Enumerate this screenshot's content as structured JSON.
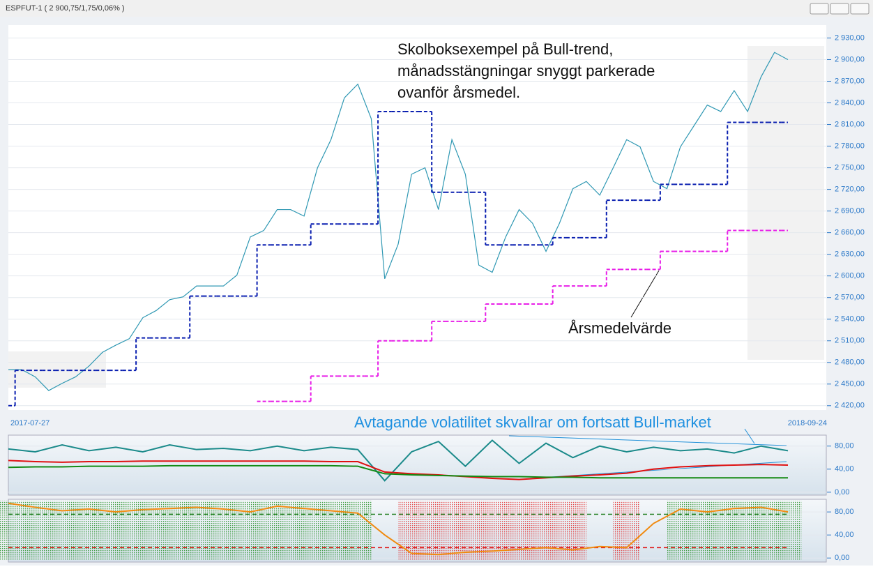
{
  "window_title": "ESPFUT-1 ( 2 900,75/1,75/0,06% )",
  "chart_data": [
    {
      "type": "line",
      "categories": [
        "2017-07-27",
        null,
        null,
        null,
        null,
        null,
        null,
        null,
        null,
        null,
        null,
        null,
        null,
        null,
        null,
        null,
        null,
        null,
        null,
        null,
        null,
        null,
        null,
        null,
        null,
        null,
        null,
        null,
        null,
        null,
        null,
        null,
        null,
        null,
        null,
        null,
        null,
        null,
        null,
        null,
        null,
        null,
        null,
        null,
        null,
        null,
        null,
        null,
        null,
        null,
        null,
        null,
        null,
        null,
        null,
        null,
        null,
        null,
        "2018-09-24"
      ],
      "series": [
        {
          "style": "line",
          "color": "#2f98b3",
          "values": [
            2470,
            2470,
            2460,
            2441,
            2451,
            2460,
            2475,
            2494,
            2504,
            2513,
            2542,
            2552,
            2567,
            2571,
            2586,
            2586,
            2586,
            2601,
            2654,
            2663,
            2692,
            2692,
            2683,
            2750,
            2789,
            2847,
            2866,
            2818,
            2596,
            2644,
            2741,
            2750,
            2692,
            2789,
            2741,
            2615,
            2605,
            2654,
            2692,
            2673,
            2634,
            2673,
            2721,
            2731,
            2712,
            2750,
            2789,
            2779,
            2731,
            2721,
            2779,
            2808,
            2837,
            2828,
            2857,
            2828,
            2876,
            2910,
            2900
          ]
        },
        {
          "style": "step",
          "color": "#0a1fb0",
          "values": [
            2420,
            2469,
            2469,
            2469,
            2469,
            2469,
            2469,
            2469,
            2469,
            2469,
            2514,
            2514,
            2514,
            2514,
            2572,
            2572,
            2572,
            2572,
            2572,
            2643,
            2643,
            2643,
            2643,
            2672,
            2672,
            2672,
            2672,
            2672,
            2828,
            2828,
            2828,
            2828,
            2716,
            2716,
            2716,
            2716,
            2643,
            2643,
            2643,
            2643,
            2643,
            2653,
            2653,
            2653,
            2653,
            2705,
            2705,
            2705,
            2705,
            2727,
            2727,
            2727,
            2727,
            2727,
            2813,
            2813,
            2813,
            2813,
            2813
          ]
        },
        {
          "style": "step",
          "color": "#e81ee8",
          "values": [
            null,
            null,
            null,
            null,
            null,
            null,
            null,
            null,
            null,
            null,
            null,
            null,
            null,
            null,
            null,
            null,
            null,
            null,
            null,
            2426,
            2426,
            2426,
            2426,
            2461,
            2461,
            2461,
            2461,
            2461,
            2510,
            2510,
            2510,
            2510,
            2537,
            2537,
            2537,
            2537,
            2561,
            2561,
            2561,
            2561,
            2561,
            2586,
            2586,
            2586,
            2586,
            2609,
            2609,
            2609,
            2609,
            2634,
            2634,
            2634,
            2634,
            2634,
            2663,
            2663,
            2663,
            2663,
            2663
          ]
        }
      ],
      "ylim": [
        2414,
        2944
      ],
      "yticks": [
        {
          "value": 2420,
          "label": "2 420,00"
        },
        {
          "value": 2450,
          "label": "2 450,00"
        },
        {
          "value": 2480,
          "label": "2 480,00"
        },
        {
          "value": 2510,
          "label": "2 510,00"
        },
        {
          "value": 2540,
          "label": "2 540,00"
        },
        {
          "value": 2570,
          "label": "2 570,00"
        },
        {
          "value": 2600,
          "label": "2 600,00"
        },
        {
          "value": 2630,
          "label": "2 630,00"
        },
        {
          "value": 2660,
          "label": "2 660,00"
        },
        {
          "value": 2690,
          "label": "2 690,00"
        },
        {
          "value": 2720,
          "label": "2 720,00"
        },
        {
          "value": 2750,
          "label": "2 750,00"
        },
        {
          "value": 2780,
          "label": "2 780,00"
        },
        {
          "value": 2810,
          "label": "2 810,00"
        },
        {
          "value": 2840,
          "label": "2 840,00"
        },
        {
          "value": 2870,
          "label": "2 870,00"
        },
        {
          "value": 2900,
          "label": "2 900,00"
        },
        {
          "value": 2930,
          "label": "2 930,00"
        }
      ],
      "grid": true,
      "annotations": [
        "Skolboksexempel på Bull-trend,",
        "månadsstängningar snyggt parkerade",
        "ovanför årsmedel.",
        "Årsmedelvärde"
      ]
    },
    {
      "type": "line",
      "series": [
        {
          "style": "line",
          "color": "#1a8a8a",
          "values": [
            75,
            70,
            82,
            72,
            78,
            70,
            82,
            74,
            76,
            72,
            80,
            72,
            78,
            74,
            20,
            70,
            88,
            45,
            90,
            50,
            85,
            60,
            80,
            70,
            78,
            72,
            75,
            68,
            80,
            72
          ]
        },
        {
          "style": "line",
          "color": "#e01010",
          "values": [
            55,
            53,
            52,
            53,
            53,
            54,
            54,
            54,
            54,
            54,
            54,
            54,
            53,
            53,
            35,
            32,
            30,
            27,
            24,
            22,
            25,
            28,
            30,
            33,
            40,
            44,
            46,
            47,
            48,
            47
          ]
        },
        {
          "style": "line",
          "color": "#138a13",
          "values": [
            43,
            44,
            44,
            45,
            45,
            45,
            46,
            46,
            46,
            46,
            46,
            46,
            46,
            45,
            32,
            30,
            29,
            28,
            27,
            27,
            26,
            26,
            25,
            25,
            25,
            25,
            25,
            25,
            25,
            25
          ]
        }
      ],
      "ylim": [
        -5,
        99
      ],
      "yticks": [
        {
          "value": 0,
          "label": "0,00"
        },
        {
          "value": 40,
          "label": "40,00"
        },
        {
          "value": 80,
          "label": "80,00"
        }
      ],
      "grid": true,
      "annotations": [
        "Avtagande volatilitet skvallrar om fortsatt Bull-market"
      ]
    },
    {
      "type": "line",
      "series": [
        {
          "style": "line",
          "color": "#f08a10",
          "values": [
            95,
            88,
            82,
            85,
            80,
            84,
            86,
            88,
            85,
            80,
            90,
            86,
            82,
            78,
            40,
            8,
            6,
            10,
            12,
            15,
            18,
            14,
            20,
            18,
            60,
            85,
            80,
            86,
            88,
            80
          ]
        }
      ],
      "hlines": [
        {
          "value": 76,
          "color": "#1a7a1a"
        },
        {
          "value": 18,
          "color": "#e01010"
        }
      ],
      "shade": true,
      "ylim": [
        -7,
        102
      ],
      "yticks": [
        {
          "value": 0,
          "label": "0,00"
        },
        {
          "value": 40,
          "label": "40,00"
        },
        {
          "value": 80,
          "label": "80,00"
        }
      ],
      "grid": true
    }
  ]
}
